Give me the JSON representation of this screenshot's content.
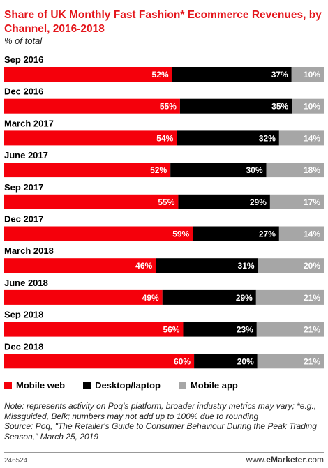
{
  "chart_data": {
    "type": "bar",
    "orientation": "horizontal",
    "stacked": true,
    "title": "Share of UK Monthly Fast Fashion* Ecommerce Revenues, by Channel, 2016-2018",
    "subtitle": "% of total",
    "categories": [
      "Sep 2016",
      "Dec 2016",
      "March 2017",
      "June 2017",
      "Sep 2017",
      "Dec 2017",
      "March 2018",
      "June 2018",
      "Sep 2018",
      "Dec 2018"
    ],
    "series": [
      {
        "name": "Mobile web",
        "color": "#f5000b",
        "values": [
          52,
          55,
          54,
          52,
          55,
          59,
          46,
          49,
          56,
          60
        ]
      },
      {
        "name": "Desktop/laptop",
        "color": "#000000",
        "values": [
          37,
          35,
          32,
          30,
          29,
          27,
          31,
          29,
          23,
          20
        ]
      },
      {
        "name": "Mobile app",
        "color": "#a6a6a6",
        "values": [
          10,
          10,
          14,
          18,
          17,
          14,
          20,
          21,
          21,
          21
        ]
      }
    ],
    "value_suffix": "%",
    "legend": "bottom",
    "grid": false
  },
  "notes": {
    "note": "Note: represents activity on Poq's platform, broader industry metrics may vary; *e.g., Missguided, Belk; numbers may not add up to 100% due to rounding",
    "source": "Source: Poq, \"The Retailer's Guide to Consumer Behaviour During the Peak Trading Season,\" March 25, 2019"
  },
  "footer": {
    "id": "246524",
    "brand_prefix": "www.",
    "brand_name": "eMarketer",
    "brand_suffix": ".com"
  }
}
